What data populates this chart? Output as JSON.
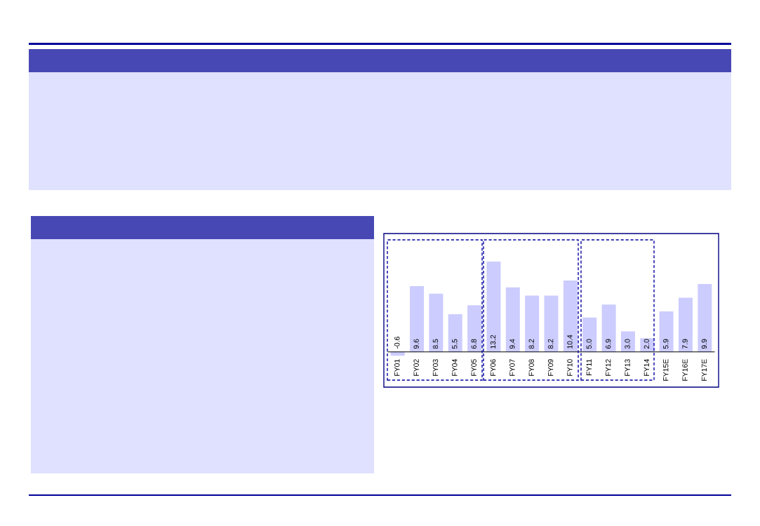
{
  "chart_data": {
    "type": "bar",
    "categories": [
      "FY01",
      "FY02",
      "FY03",
      "FY04",
      "FY05",
      "FY06",
      "FY07",
      "FY08",
      "FY09",
      "FY10",
      "FY11",
      "FY12",
      "FY13",
      "FY14",
      "FY15E",
      "FY16E",
      "FY17E"
    ],
    "values": [
      -0.6,
      9.6,
      8.5,
      5.5,
      6.8,
      13.2,
      9.4,
      8.2,
      8.2,
      10.4,
      5.0,
      6.9,
      3.0,
      2.0,
      5.9,
      7.9,
      9.9
    ],
    "value_labels": [
      "-0.6",
      "9.6",
      "8.5",
      "5.5",
      "6.8",
      "13.2",
      "9.4",
      "8.2",
      "8.2",
      "10.4",
      "5.0",
      "6.9",
      "3.0",
      "2.0",
      "5.9",
      "7.9",
      "9.9"
    ],
    "color": "#ccccff",
    "tick_labels": "x"
  }
}
